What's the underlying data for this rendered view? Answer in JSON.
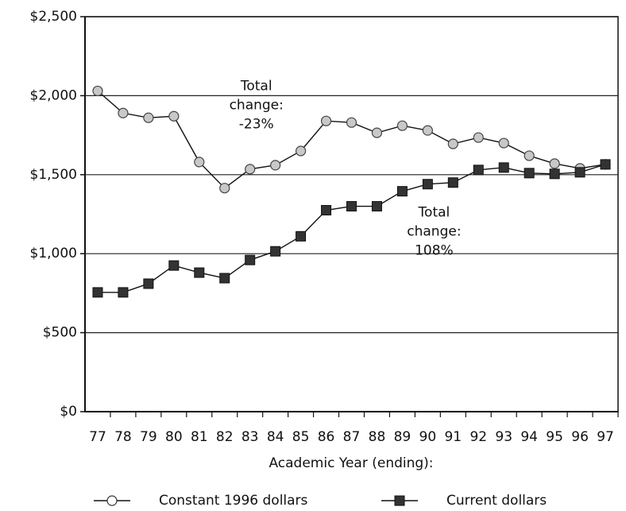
{
  "chart_data": {
    "type": "line",
    "x_label": "Academic Year (ending):",
    "categories": [
      "77",
      "78",
      "79",
      "80",
      "81",
      "82",
      "83",
      "84",
      "85",
      "86",
      "87",
      "88",
      "89",
      "90",
      "91",
      "92",
      "93",
      "94",
      "95",
      "96",
      "97"
    ],
    "series": [
      {
        "name": "Constant 1996 dollars",
        "color": "#c8c8c8",
        "marker": "circle",
        "values": [
          2030,
          1890,
          1860,
          1870,
          1580,
          1415,
          1535,
          1560,
          1650,
          1840,
          1830,
          1765,
          1810,
          1780,
          1695,
          1735,
          1700,
          1620,
          1570,
          1540,
          1565
        ]
      },
      {
        "name": "Current dollars",
        "color": "#333333",
        "marker": "square",
        "values": [
          755,
          755,
          810,
          925,
          880,
          845,
          960,
          1015,
          1110,
          1275,
          1300,
          1300,
          1395,
          1440,
          1450,
          1530,
          1545,
          1510,
          1505,
          1515,
          1565
        ]
      }
    ],
    "ylim": [
      0,
      2500
    ],
    "yticks": [
      {
        "value": 0,
        "label": "$0"
      },
      {
        "value": 500,
        "label": "$500"
      },
      {
        "value": 1000,
        "label": "$1,000"
      },
      {
        "value": 1500,
        "label": "$1,500"
      },
      {
        "value": 2000,
        "label": "$2,000"
      },
      {
        "value": 2500,
        "label": "$2,500"
      }
    ],
    "grid": true,
    "legend": "bottom",
    "annotations": [
      {
        "lines": [
          "Total",
          "change:",
          "-23%"
        ],
        "x": "82",
        "y": 2000
      },
      {
        "lines": [
          "Total",
          "change:",
          "108%"
        ],
        "x": "89",
        "y": 1200
      }
    ]
  }
}
